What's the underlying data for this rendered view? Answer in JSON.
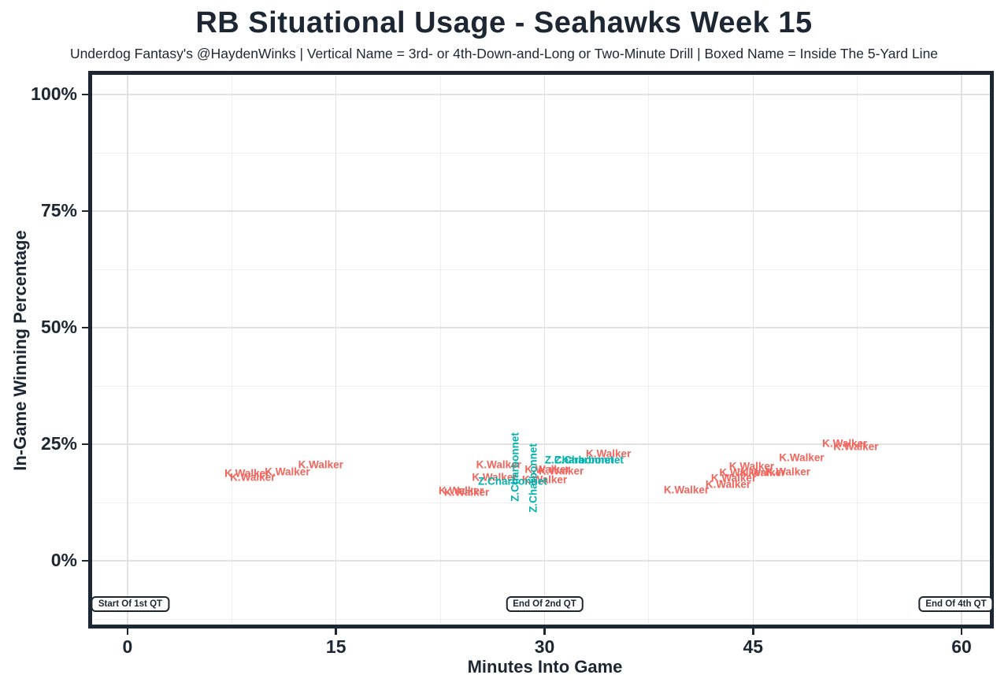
{
  "page": {
    "background": "#ffffff"
  },
  "chart_data": {
    "type": "scatter",
    "title": "RB Situational Usage - Seahawks Week 15",
    "subtitle": "Underdog Fantasy's @HaydenWinks | Vertical Name = 3rd- or 4th-Down-and-Long or Two-Minute Drill | Boxed Name = Inside The 5-Yard Line",
    "xlabel": "Minutes Into Game",
    "ylabel": "In-Game Winning Percentage",
    "legend": "none",
    "grid": true,
    "x_axis": {
      "ticks": [
        0,
        15,
        30,
        45,
        60
      ],
      "minor": [
        7.5,
        22.5,
        37.5,
        52.5
      ],
      "lim": [
        -2.83,
        62.32
      ]
    },
    "y_axis": {
      "ticks": [
        0,
        25,
        50,
        75,
        100
      ],
      "tick_suffix": "%",
      "minor": [
        -12.5,
        12.5,
        37.5,
        62.5,
        87.5
      ],
      "lim": [
        -14.5,
        105.1
      ]
    },
    "colors": {
      "k_walker": "#f3655c",
      "z_charbonnet": "#00b3ae",
      "axis_text": "#1d2733",
      "grid_major": "#e2e2e2",
      "grid_minor": "#efefef",
      "panel_border": "#1d2733"
    },
    "series": [
      {
        "name": "K.Walker",
        "color_key": "k_walker",
        "points": [
          {
            "x": 8.6,
            "y": 18.7,
            "vertical": false
          },
          {
            "x": 9.0,
            "y": 18.0,
            "vertical": false
          },
          {
            "x": 11.5,
            "y": 19.1,
            "vertical": false
          },
          {
            "x": 13.9,
            "y": 20.6,
            "vertical": false
          },
          {
            "x": 24.0,
            "y": 15.0,
            "vertical": false
          },
          {
            "x": 24.4,
            "y": 14.7,
            "vertical": false
          },
          {
            "x": 26.4,
            "y": 17.9,
            "vertical": false
          },
          {
            "x": 26.7,
            "y": 20.6,
            "vertical": false
          },
          {
            "x": 30.0,
            "y": 17.4,
            "vertical": false
          },
          {
            "x": 30.2,
            "y": 19.6,
            "vertical": false
          },
          {
            "x": 31.2,
            "y": 19.3,
            "vertical": false
          },
          {
            "x": 34.6,
            "y": 23.0,
            "vertical": false
          },
          {
            "x": 40.2,
            "y": 15.2,
            "vertical": false
          },
          {
            "x": 43.2,
            "y": 16.4,
            "vertical": false
          },
          {
            "x": 43.6,
            "y": 17.7,
            "vertical": false
          },
          {
            "x": 44.2,
            "y": 18.9,
            "vertical": false
          },
          {
            "x": 44.9,
            "y": 20.3,
            "vertical": false
          },
          {
            "x": 45.7,
            "y": 18.9,
            "vertical": false
          },
          {
            "x": 47.5,
            "y": 19.1,
            "vertical": false
          },
          {
            "x": 48.5,
            "y": 22.1,
            "vertical": false
          },
          {
            "x": 51.6,
            "y": 25.2,
            "vertical": false
          },
          {
            "x": 52.4,
            "y": 24.5,
            "vertical": false
          }
        ]
      },
      {
        "name": "Z.Charbonnet",
        "color_key": "z_charbonnet",
        "points": [
          {
            "x": 27.7,
            "y": 17.1,
            "vertical": false
          },
          {
            "x": 27.9,
            "y": 20.1,
            "vertical": true
          },
          {
            "x": 29.2,
            "y": 17.7,
            "vertical": true
          },
          {
            "x": 32.5,
            "y": 21.6,
            "vertical": false
          },
          {
            "x": 33.2,
            "y": 21.6,
            "vertical": false
          }
        ]
      }
    ],
    "annotations": [
      {
        "label": "Start Of 1st QT",
        "x": 0.2,
        "y": -9.3
      },
      {
        "label": "End Of 2nd QT",
        "x": 30.0,
        "y": -9.3
      },
      {
        "label": "End Of 4th QT",
        "x": 59.6,
        "y": -9.3
      }
    ]
  }
}
